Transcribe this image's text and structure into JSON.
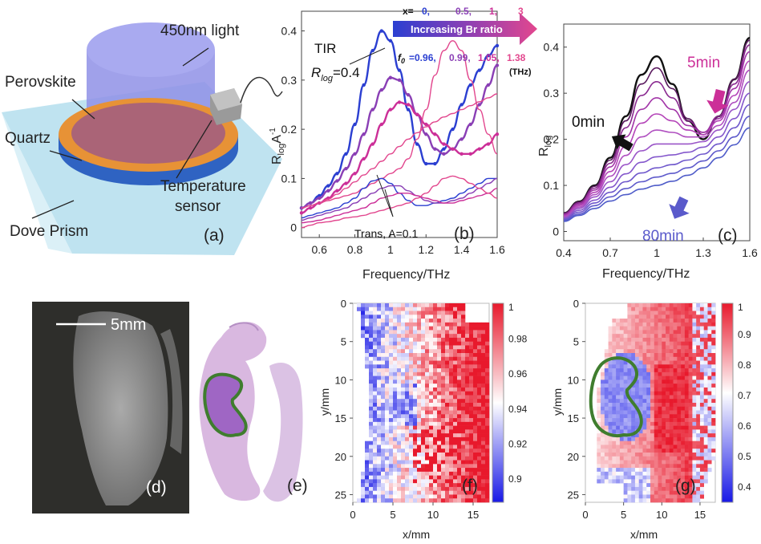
{
  "colors": {
    "navy": "#3a3aa8",
    "blue": "#2b3fd1",
    "purple": "#8a3fb5",
    "magenta": "#cc2f98",
    "pink": "#e2478e",
    "black": "#111111",
    "green": "#3f7d2e",
    "red": "#e8192c",
    "hist_bg": "#d9b8e0",
    "quartz_blue": "#2f63c2",
    "orange": "#e79236",
    "light_blue": "#9fd4ea",
    "violet": "#9fa0e6"
  },
  "panel_a": {
    "letter": "(a)",
    "labels": {
      "light": "450nm light",
      "perovskite": "Perovskite",
      "quartz": "Quartz",
      "temperature": "Temperature",
      "sensor": "sensor",
      "dove": "Dove Prism"
    }
  },
  "panel_b": {
    "letter": "(b)",
    "x_label": "Frequency/THz",
    "y_label_main": "R",
    "y_label_sub1": "log",
    "y_label_mid": "A",
    "y_label_sup": "-1",
    "tir_label": "TIR",
    "rlog_label_main": "R",
    "rlog_label_sub": "log",
    "rlog_label_value": "=0.4",
    "trans_label": "Trans, A=0.1",
    "arrow_text": "Increasing Br ratio",
    "x_prefix": "x=",
    "x_values": [
      "0,",
      "0.5,",
      "1,",
      "3"
    ],
    "f0_prefix": "f",
    "f0_sub": "0",
    "f0_eq": "=0.96,",
    "f0_values": [
      "0.99,",
      "1.05,",
      "1.38"
    ],
    "f0_unit": "(THz)"
  },
  "panel_c": {
    "letter": "(c)",
    "x_label": "Frequency/THz",
    "y_label_main": "R",
    "y_label_sub": "log",
    "label_5min": "5min",
    "label_0min": "0min",
    "label_80min": "80min"
  },
  "panel_d": {
    "letter": "(d)",
    "scale_label": "5mm"
  },
  "panel_e": {
    "letter": "(e)"
  },
  "panel_f": {
    "letter": "(f)",
    "x_label": "x/mm",
    "y_label": "y/mm",
    "colorbar_ticks": [
      "1",
      "0.98",
      "0.96",
      "0.94",
      "0.92",
      "0.9"
    ]
  },
  "panel_g": {
    "letter": "(g)",
    "x_label": "x/mm",
    "y_label": "y/mm",
    "colorbar_ticks": [
      "1",
      "0.9",
      "0.8",
      "0.7",
      "0.6",
      "0.5",
      "0.4"
    ]
  },
  "chart_data": [
    {
      "type": "line",
      "id": "b",
      "xlabel": "Frequency/THz",
      "ylabel": "R_log A^-1",
      "xlim": [
        0.5,
        1.6
      ],
      "ylim": [
        -0.02,
        0.44
      ],
      "xticks": [
        "0.6",
        "0.8",
        "1",
        "1.2",
        "1.4",
        "1.6"
      ],
      "yticks": [
        "0",
        "0.1",
        "0.2",
        "0.3",
        "0.4"
      ],
      "x": [
        0.5,
        0.55,
        0.6,
        0.65,
        0.7,
        0.75,
        0.8,
        0.85,
        0.9,
        0.95,
        1.0,
        1.05,
        1.1,
        1.15,
        1.2,
        1.25,
        1.3,
        1.35,
        1.4,
        1.45,
        1.5,
        1.55,
        1.6
      ],
      "series": [
        {
          "values": [
            0.04,
            0.05,
            0.065,
            0.085,
            0.11,
            0.15,
            0.21,
            0.29,
            0.36,
            0.4,
            0.38,
            0.32,
            0.24,
            0.17,
            0.13,
            0.13,
            0.16,
            0.2,
            0.25,
            0.29,
            0.32,
            0.35,
            0.37
          ],
          "color": "blue",
          "dotted": true
        },
        {
          "values": [
            0.04,
            0.05,
            0.06,
            0.075,
            0.095,
            0.12,
            0.15,
            0.19,
            0.24,
            0.28,
            0.305,
            0.3,
            0.27,
            0.23,
            0.19,
            0.16,
            0.15,
            0.16,
            0.18,
            0.21,
            0.25,
            0.29,
            0.33
          ],
          "color": "purple",
          "dotted": true
        },
        {
          "values": [
            0.03,
            0.04,
            0.05,
            0.06,
            0.075,
            0.09,
            0.11,
            0.14,
            0.17,
            0.21,
            0.24,
            0.255,
            0.25,
            0.23,
            0.21,
            0.19,
            0.17,
            0.16,
            0.15,
            0.15,
            0.16,
            0.17,
            0.19
          ],
          "color": "magenta",
          "dotted": true
        },
        {
          "values": [
            0.04,
            0.045,
            0.05,
            0.055,
            0.06,
            0.065,
            0.07,
            0.08,
            0.09,
            0.1,
            0.11,
            0.12,
            0.14,
            0.18,
            0.24,
            0.31,
            0.36,
            0.38,
            0.36,
            0.3,
            0.24,
            0.19,
            0.15
          ],
          "color": "pink",
          "dotted": false
        },
        {
          "values": [
            0.02,
            0.025,
            0.03,
            0.035,
            0.04,
            0.05,
            0.06,
            0.08,
            0.095,
            0.1,
            0.09,
            0.07,
            0.055,
            0.045,
            0.045,
            0.05,
            0.055,
            0.06,
            0.07,
            0.08,
            0.09,
            0.1,
            0.1
          ],
          "color": "blue",
          "dotted": false
        },
        {
          "values": [
            0.015,
            0.02,
            0.025,
            0.03,
            0.035,
            0.04,
            0.05,
            0.06,
            0.07,
            0.08,
            0.085,
            0.085,
            0.075,
            0.065,
            0.055,
            0.05,
            0.05,
            0.055,
            0.06,
            0.07,
            0.08,
            0.09,
            0.1
          ],
          "color": "purple",
          "dotted": false
        },
        {
          "values": [
            0.01,
            0.012,
            0.015,
            0.02,
            0.025,
            0.03,
            0.035,
            0.04,
            0.05,
            0.06,
            0.065,
            0.07,
            0.07,
            0.065,
            0.06,
            0.055,
            0.05,
            0.05,
            0.055,
            0.06,
            0.065,
            0.07,
            0.08
          ],
          "color": "magenta",
          "dotted": false
        },
        {
          "values": [
            0.0,
            0.005,
            0.01,
            0.012,
            0.015,
            0.02,
            0.022,
            0.025,
            0.03,
            0.035,
            0.04,
            0.045,
            0.05,
            0.06,
            0.07,
            0.085,
            0.1,
            0.105,
            0.1,
            0.09,
            0.08,
            0.07,
            0.06
          ],
          "color": "pink",
          "dotted": false
        },
        {
          "values": [
            0.04,
            0.045,
            0.05,
            0.058,
            0.068,
            0.08,
            0.093,
            0.107,
            0.12,
            0.135,
            0.15,
            0.165,
            0.18,
            0.193,
            0.205,
            0.215,
            0.225,
            0.232,
            0.24,
            0.248,
            0.256,
            0.264,
            0.272
          ],
          "color": "pink",
          "dotted": false
        }
      ]
    },
    {
      "type": "line",
      "id": "c",
      "xlabel": "Frequency/THz",
      "ylabel": "R_log",
      "xlim": [
        0.4,
        1.6
      ],
      "ylim": [
        -0.02,
        0.45
      ],
      "xticks": [
        "0.4",
        "0.7",
        "1",
        "1.3",
        "1.6"
      ],
      "yticks": [
        "0",
        "0.1",
        "0.2",
        "0.3",
        "0.4"
      ],
      "x": [
        0.4,
        0.5,
        0.6,
        0.7,
        0.8,
        0.9,
        1.0,
        1.1,
        1.2,
        1.3,
        1.4,
        1.5,
        1.6
      ],
      "series": [
        {
          "values": [
            0.04,
            0.065,
            0.1,
            0.16,
            0.25,
            0.34,
            0.38,
            0.32,
            0.24,
            0.2,
            0.25,
            0.33,
            0.42
          ],
          "color": "black"
        },
        {
          "values": [
            0.04,
            0.064,
            0.098,
            0.155,
            0.24,
            0.32,
            0.355,
            0.31,
            0.245,
            0.21,
            0.25,
            0.33,
            0.415
          ],
          "color": "#5a1a5f"
        },
        {
          "values": [
            0.038,
            0.062,
            0.094,
            0.148,
            0.225,
            0.295,
            0.325,
            0.29,
            0.24,
            0.215,
            0.25,
            0.32,
            0.405
          ],
          "color": "#8a2a90"
        },
        {
          "values": [
            0.036,
            0.059,
            0.09,
            0.14,
            0.205,
            0.265,
            0.29,
            0.265,
            0.23,
            0.215,
            0.245,
            0.31,
            0.39
          ],
          "color": "#a235a8"
        },
        {
          "values": [
            0.034,
            0.056,
            0.085,
            0.13,
            0.185,
            0.235,
            0.255,
            0.24,
            0.22,
            0.21,
            0.24,
            0.295,
            0.37
          ],
          "color": "#b444b8"
        },
        {
          "values": [
            0.032,
            0.053,
            0.08,
            0.12,
            0.165,
            0.205,
            0.22,
            0.215,
            0.205,
            0.205,
            0.23,
            0.28,
            0.35
          ],
          "color": "#b050c0"
        },
        {
          "values": [
            0.03,
            0.05,
            0.075,
            0.108,
            0.145,
            0.175,
            0.19,
            0.19,
            0.19,
            0.195,
            0.22,
            0.265,
            0.325
          ],
          "color": "#9a55c8"
        },
        {
          "values": [
            0.028,
            0.046,
            0.068,
            0.096,
            0.125,
            0.15,
            0.162,
            0.166,
            0.172,
            0.183,
            0.205,
            0.245,
            0.3
          ],
          "color": "#8457cc"
        },
        {
          "values": [
            0.026,
            0.042,
            0.062,
            0.085,
            0.108,
            0.127,
            0.138,
            0.145,
            0.155,
            0.168,
            0.19,
            0.225,
            0.275
          ],
          "color": "#6f58cc"
        },
        {
          "values": [
            0.024,
            0.038,
            0.056,
            0.075,
            0.093,
            0.108,
            0.118,
            0.126,
            0.138,
            0.153,
            0.175,
            0.205,
            0.25
          ],
          "color": "#5e5acb"
        },
        {
          "values": [
            0.022,
            0.035,
            0.05,
            0.066,
            0.08,
            0.092,
            0.1,
            0.109,
            0.122,
            0.138,
            0.16,
            0.188,
            0.225
          ],
          "color": "#4f5cc9"
        }
      ]
    },
    {
      "type": "heatmap",
      "id": "f",
      "xlabel": "x/mm",
      "ylabel": "y/mm",
      "xlim": [
        0,
        17
      ],
      "ylim": [
        26,
        0
      ],
      "xticks": [
        "0",
        "5",
        "10",
        "15"
      ],
      "yticks": [
        "0",
        "5",
        "10",
        "15",
        "20",
        "25"
      ],
      "colorbar": [
        0.89,
        1.0
      ]
    },
    {
      "type": "heatmap",
      "id": "g",
      "xlabel": "x/mm",
      "ylabel": "y/mm",
      "xlim": [
        0,
        17
      ],
      "ylim": [
        26,
        0
      ],
      "xticks": [
        "0",
        "5",
        "10",
        "15"
      ],
      "yticks": [
        "0",
        "5",
        "10",
        "15",
        "20",
        "25"
      ],
      "colorbar": [
        0.33,
        1.0
      ]
    }
  ]
}
